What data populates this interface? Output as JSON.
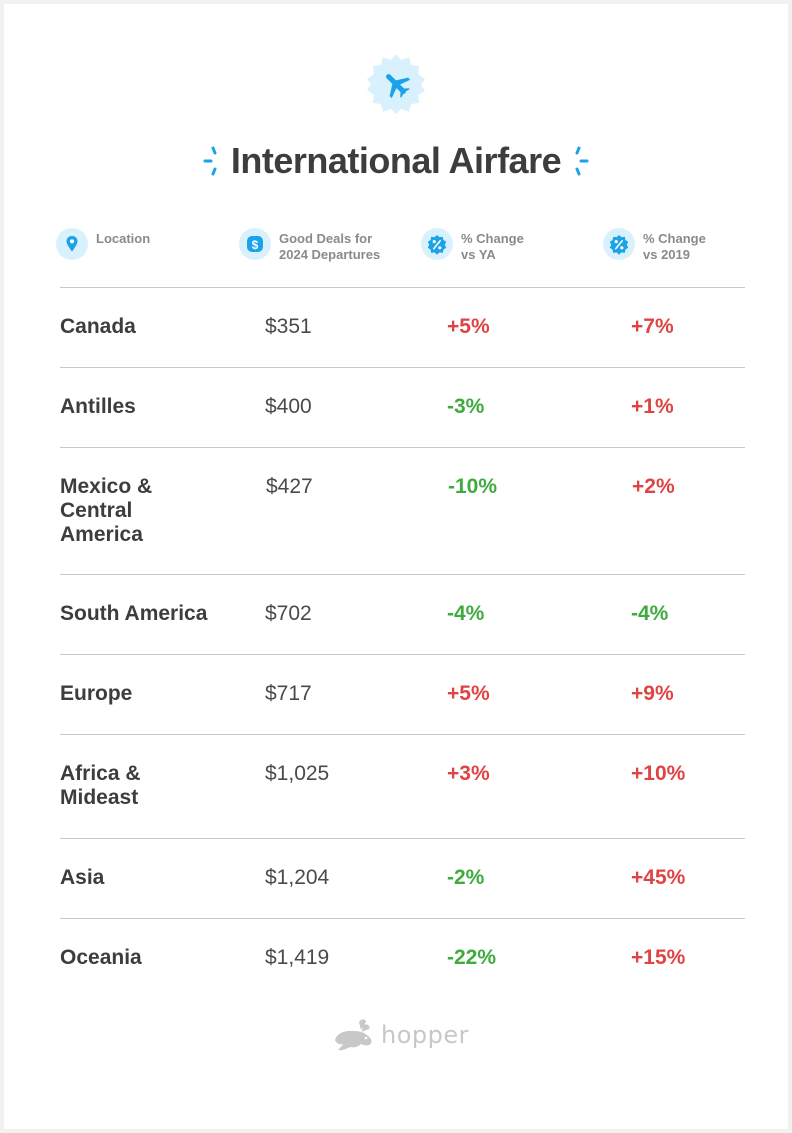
{
  "title": "International Airfare",
  "headers": {
    "location": "Location",
    "deals_line1": "Good Deals for",
    "deals_line2": "2024 Departures",
    "ya_line1": "% Change",
    "ya_line2": "vs YA",
    "y2019_line1": "% Change",
    "y2019_line2": "vs 2019"
  },
  "rows": [
    {
      "location": "Canada",
      "price": "$351",
      "change_ya": "+5%",
      "change_2019": "+7%"
    },
    {
      "location": "Antilles",
      "price": "$400",
      "change_ya": "-3%",
      "change_2019": "+1%"
    },
    {
      "location": "Mexico & Central America",
      "price": "$427",
      "change_ya": "-10%",
      "change_2019": "+2%"
    },
    {
      "location": "South America",
      "price": "$702",
      "change_ya": "-4%",
      "change_2019": "-4%"
    },
    {
      "location": "Europe",
      "price": "$717",
      "change_ya": "+5%",
      "change_2019": "+9%"
    },
    {
      "location": "Africa & Mideast",
      "price": "$1,025",
      "change_ya": "+3%",
      "change_2019": "+10%"
    },
    {
      "location": "Asia",
      "price": "$1,204",
      "change_ya": "-2%",
      "change_2019": "+45%"
    },
    {
      "location": "Oceania",
      "price": "$1,419",
      "change_ya": "-22%",
      "change_2019": "+15%"
    }
  ],
  "colors": {
    "accent": "#1aa3e8",
    "badge_bg": "#d9f1fc",
    "increase": "#e04343",
    "decrease": "#3dab3d",
    "text": "#3d3d3d"
  },
  "icons": {
    "hero": "airplane-icon",
    "location": "map-pin-icon",
    "deals": "dollar-icon",
    "percent": "percent-badge-icon",
    "logo": "bunny-icon"
  },
  "brand": "hopper"
}
